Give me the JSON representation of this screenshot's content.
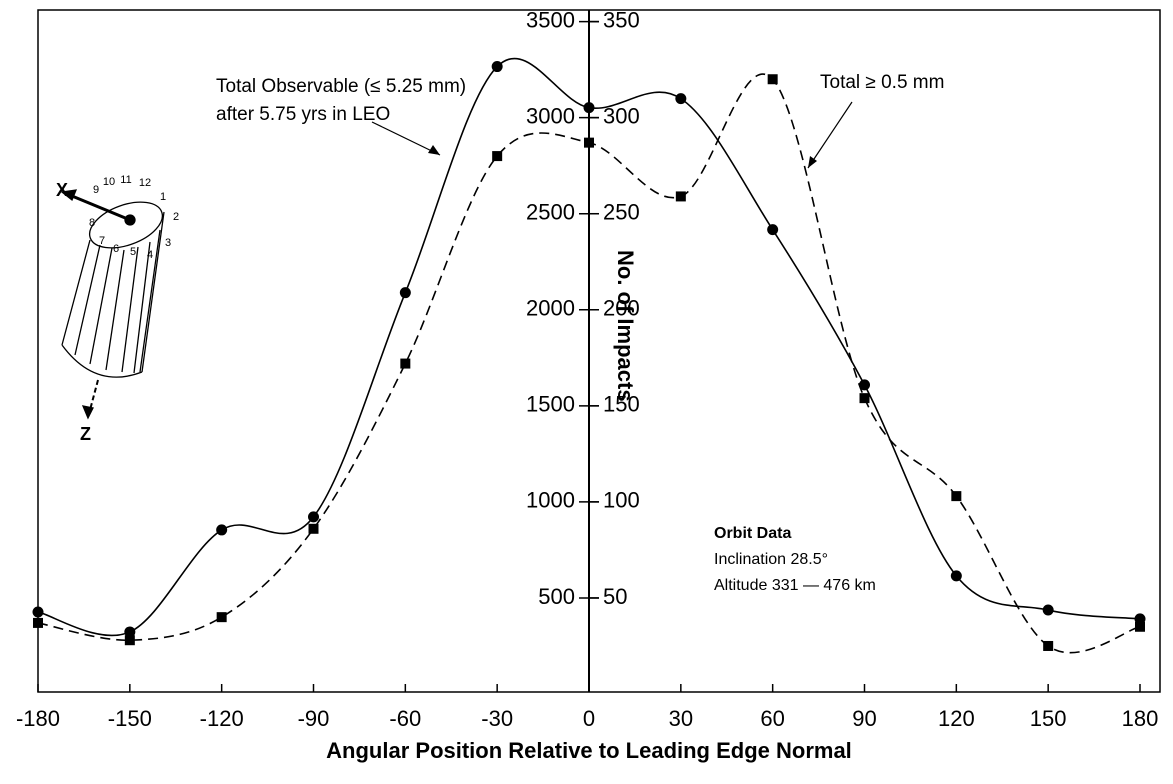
{
  "chart_data": {
    "type": "line",
    "x_label": "Angular Position Relative to Leading Edge Normal",
    "y_label": "No. of Impacts",
    "x": [
      -180,
      -150,
      -120,
      -90,
      -60,
      -30,
      0,
      30,
      60,
      90,
      120,
      150,
      180
    ],
    "series": [
      {
        "name": "Total Observable (≤ 5.25 mm)",
        "color": "#000000",
        "line_style": "solid",
        "marker": "circle",
        "values": [
          427,
          323,
          854,
          922,
          2089,
          3266,
          3052,
          3099,
          2417,
          1609,
          615,
          437,
          391
        ]
      },
      {
        "name": "Total ≥ 0.5 mm",
        "color": "#000000",
        "line_style": "dashed",
        "marker": "square",
        "axis": "y2",
        "values": [
          37,
          28,
          40,
          86,
          172,
          280,
          287,
          259,
          320,
          154,
          103,
          25,
          35
        ]
      }
    ],
    "xlim": [
      -180,
      180
    ],
    "xticks": [
      -180,
      -150,
      -120,
      -90,
      -60,
      -30,
      0,
      30,
      60,
      90,
      120,
      150,
      180
    ],
    "ylim": [
      0,
      3550
    ],
    "yticks": [
      500,
      1000,
      1500,
      2000,
      2500,
      3000,
      3500
    ],
    "y2lim": [
      0,
      355
    ],
    "y2ticks": [
      50,
      100,
      150,
      200,
      250,
      300,
      350
    ],
    "annotations": {
      "series_0_line2": "after 5.75 yrs in LEO",
      "orbit_title": "Orbit Data",
      "inclination": "Inclination 28.5°",
      "altitude": "Altitude 331 — 476 km"
    },
    "icon_labels": {
      "x_axis": "X",
      "z_axis": "Z",
      "positions": [
        "1",
        "2",
        "3",
        "4",
        "5",
        "6",
        "7",
        "8",
        "9",
        "10",
        "11",
        "12"
      ]
    }
  }
}
